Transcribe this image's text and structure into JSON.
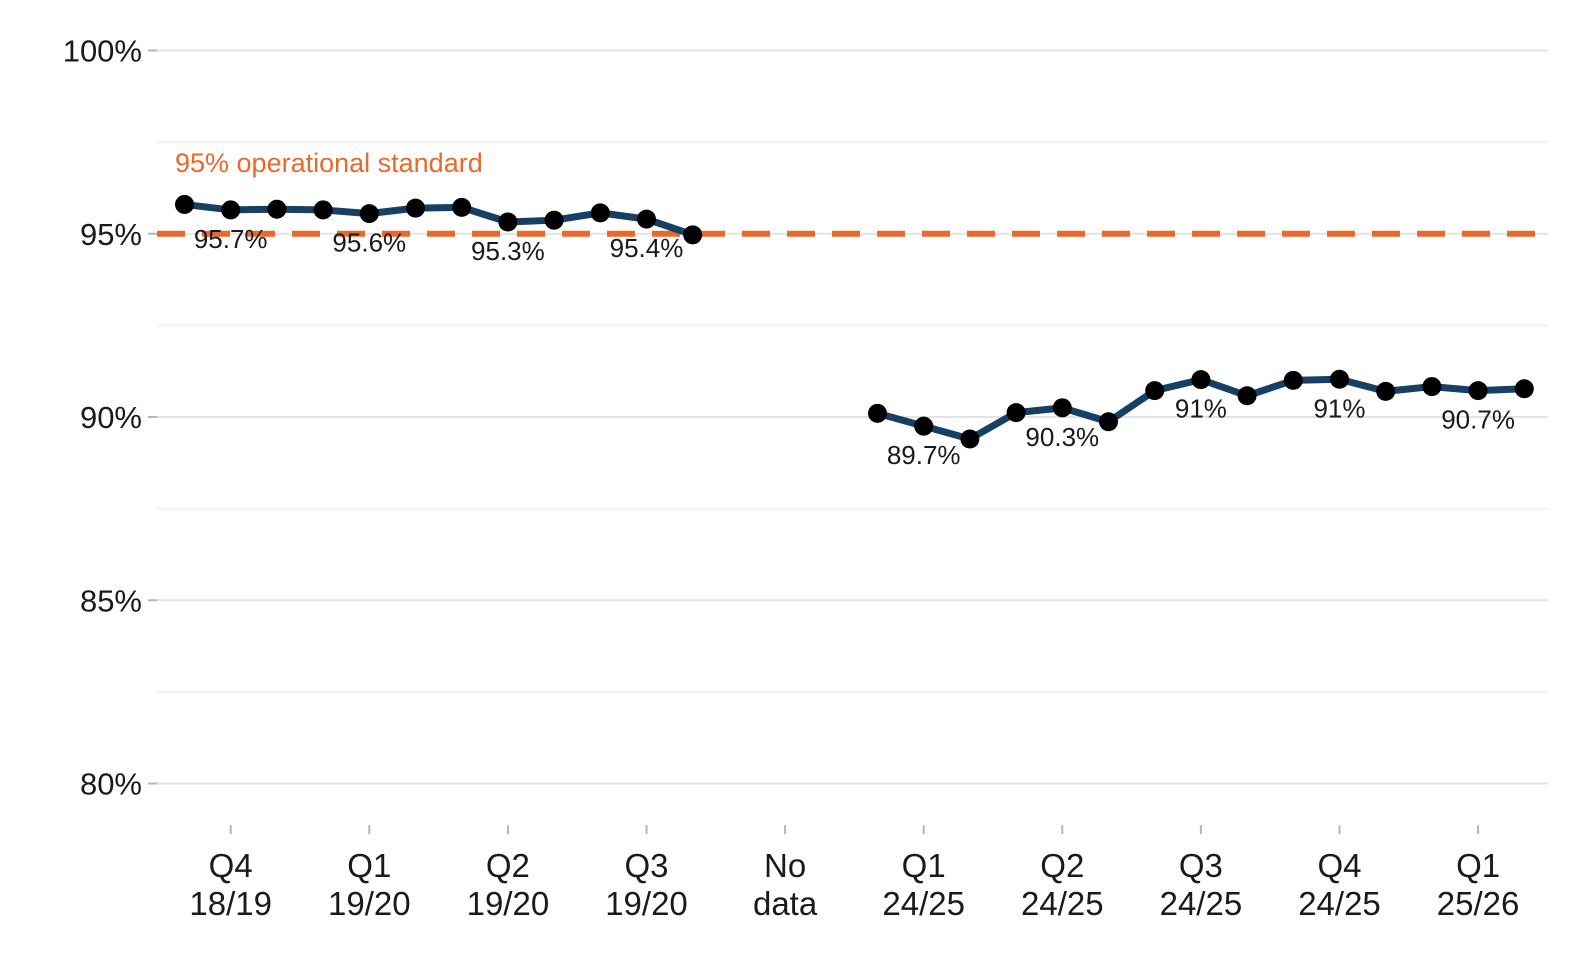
{
  "chart_data": {
    "type": "line",
    "ylim": [
      79,
      100.5
    ],
    "y_ticks": [
      {
        "value": 80,
        "label": "80%"
      },
      {
        "value": 85,
        "label": "85%"
      },
      {
        "value": 90,
        "label": "90%"
      },
      {
        "value": 95,
        "label": "95%"
      },
      {
        "value": 100,
        "label": "100%"
      }
    ],
    "x_ticks": [
      {
        "position": 2,
        "line1": "Q4",
        "line2": "18/19"
      },
      {
        "position": 5,
        "line1": "Q1",
        "line2": "19/20"
      },
      {
        "position": 8,
        "line1": "Q2",
        "line2": "19/20"
      },
      {
        "position": 11,
        "line1": "Q3",
        "line2": "19/20"
      },
      {
        "position": 14,
        "line1": "No",
        "line2": "data"
      },
      {
        "position": 17,
        "line1": "Q1",
        "line2": "24/25"
      },
      {
        "position": 20,
        "line1": "Q2",
        "line2": "24/25"
      },
      {
        "position": 23,
        "line1": "Q3",
        "line2": "24/25"
      },
      {
        "position": 26,
        "line1": "Q4",
        "line2": "24/25"
      },
      {
        "position": 29,
        "line1": "Q1",
        "line2": "25/26"
      }
    ],
    "reference_line": {
      "value": 95,
      "label": "95% operational standard",
      "color": "#e8692a"
    },
    "series": [
      {
        "color": "#173e63",
        "points": [
          {
            "x": 1,
            "y": 95.8
          },
          {
            "x": 2,
            "y": 95.65
          },
          {
            "x": 3,
            "y": 95.67
          },
          {
            "x": 4,
            "y": 95.65
          },
          {
            "x": 5,
            "y": 95.55
          },
          {
            "x": 6,
            "y": 95.7
          },
          {
            "x": 7,
            "y": 95.72
          },
          {
            "x": 8,
            "y": 95.32
          },
          {
            "x": 9,
            "y": 95.37
          },
          {
            "x": 10,
            "y": 95.57
          },
          {
            "x": 11,
            "y": 95.4
          },
          {
            "x": 12,
            "y": 94.97
          }
        ]
      },
      {
        "color": "#173e63",
        "points": [
          {
            "x": 16,
            "y": 90.1
          },
          {
            "x": 17,
            "y": 89.75
          },
          {
            "x": 18,
            "y": 89.4
          },
          {
            "x": 19,
            "y": 90.12
          },
          {
            "x": 20,
            "y": 90.25
          },
          {
            "x": 21,
            "y": 89.87
          },
          {
            "x": 22,
            "y": 90.72
          },
          {
            "x": 23,
            "y": 91.02
          },
          {
            "x": 24,
            "y": 90.58
          },
          {
            "x": 25,
            "y": 91.0
          },
          {
            "x": 26,
            "y": 91.03
          },
          {
            "x": 27,
            "y": 90.7
          },
          {
            "x": 28,
            "y": 90.83
          },
          {
            "x": 29,
            "y": 90.72
          },
          {
            "x": 30,
            "y": 90.77
          }
        ]
      }
    ],
    "data_labels": [
      {
        "x": 2,
        "y": 95.65,
        "text": "95.7%"
      },
      {
        "x": 5,
        "y": 95.55,
        "text": "95.6%"
      },
      {
        "x": 8,
        "y": 95.32,
        "text": "95.3%"
      },
      {
        "x": 11,
        "y": 95.4,
        "text": "95.4%"
      },
      {
        "x": 17,
        "y": 89.75,
        "text": "89.7%"
      },
      {
        "x": 20,
        "y": 90.25,
        "text": "90.3%"
      },
      {
        "x": 23,
        "y": 91.02,
        "text": "91%"
      },
      {
        "x": 26,
        "y": 91.03,
        "text": "91%"
      },
      {
        "x": 29,
        "y": 90.72,
        "text": "90.7%"
      }
    ],
    "grid": true,
    "marker_color": "#000000"
  }
}
